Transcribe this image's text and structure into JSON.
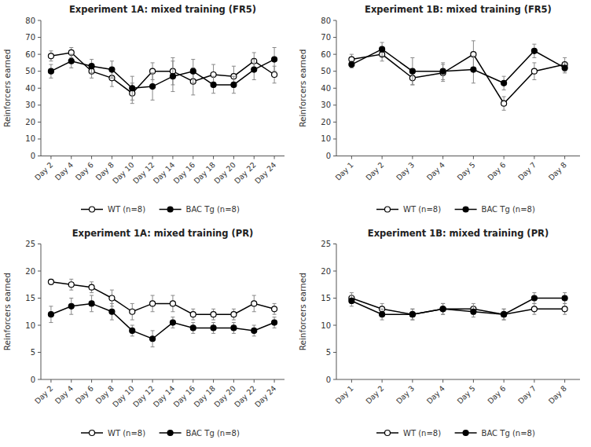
{
  "chart_data": [
    {
      "type": "line",
      "title": "Experiment 1A: mixed training (FR5)",
      "y_label": "Reinforcers earned",
      "categories": [
        "Day 2",
        "Day 4",
        "Day 6",
        "Day 8",
        "Day 10",
        "Day 12",
        "Day 14",
        "Day 16",
        "Day 18",
        "Day 20",
        "Day 22",
        "Day 24"
      ],
      "ylim": [
        0,
        80
      ],
      "yticks": [
        0,
        10,
        20,
        30,
        40,
        50,
        60,
        70,
        80
      ],
      "grid": false,
      "legend": "bottom",
      "series": [
        {
          "name": "WT (n=8)",
          "color": "#000000",
          "marker": "open-circle",
          "values": [
            59,
            61,
            50,
            46,
            37,
            50,
            50,
            44,
            48,
            47,
            56,
            48
          ],
          "errors": [
            3,
            3,
            4,
            5,
            6,
            5,
            8,
            8,
            6,
            6,
            5,
            5
          ]
        },
        {
          "name": "BAC Tg (n=8)",
          "color": "#000000",
          "marker": "circle",
          "values": [
            50,
            56,
            53,
            51,
            40,
            41,
            47,
            50,
            42,
            42,
            51,
            57
          ],
          "errors": [
            4,
            4,
            4,
            5,
            7,
            8,
            9,
            7,
            5,
            5,
            6,
            7
          ]
        }
      ]
    },
    {
      "type": "line",
      "title": "Experiment 1B: mixed training (FR5)",
      "y_label": "Reinforcers earned",
      "categories": [
        "Day 1",
        "Day 2",
        "Day 3",
        "Day 4",
        "Day 5",
        "Day 6",
        "Day 7",
        "Day 8"
      ],
      "ylim": [
        0,
        80
      ],
      "yticks": [
        0,
        10,
        20,
        30,
        40,
        50,
        60,
        70,
        80
      ],
      "grid": false,
      "legend": "bottom",
      "series": [
        {
          "name": "WT (n=8)",
          "color": "#000000",
          "marker": "open-circle",
          "values": [
            57,
            60,
            46,
            49,
            60,
            31,
            50,
            54
          ],
          "errors": [
            3,
            4,
            4,
            5,
            8,
            4,
            5,
            4
          ]
        },
        {
          "name": "BAC Tg (n=8)",
          "color": "#000000",
          "marker": "circle",
          "values": [
            54,
            63,
            50,
            50,
            51,
            43,
            62,
            52
          ],
          "errors": [
            2,
            4,
            8,
            5,
            8,
            4,
            4,
            3
          ]
        }
      ]
    },
    {
      "type": "line",
      "title": "Experiment 1A: mixed training (PR)",
      "y_label": "Reinforcers earned",
      "categories": [
        "Day 2",
        "Day 4",
        "Day 6",
        "Day 8",
        "Day 10",
        "Day 12",
        "Day 14",
        "Day 16",
        "Day 18",
        "Day 20",
        "Day 22",
        "Day 24"
      ],
      "ylim": [
        0,
        25
      ],
      "yticks": [
        0,
        5,
        10,
        15,
        20,
        25
      ],
      "grid": false,
      "legend": "bottom",
      "series": [
        {
          "name": "WT (n=8)",
          "color": "#000000",
          "marker": "open-circle",
          "values": [
            18,
            17.5,
            17,
            15,
            12.5,
            14,
            14,
            12,
            12,
            12,
            14,
            13
          ],
          "errors": [
            0.5,
            1,
            1,
            1.5,
            1.5,
            1.5,
            1.5,
            1,
            1,
            1,
            1.5,
            1
          ]
        },
        {
          "name": "BAC Tg (n=8)",
          "color": "#000000",
          "marker": "circle",
          "values": [
            12,
            13.5,
            14,
            12.5,
            9,
            7.5,
            10.5,
            9.5,
            9.5,
            9.5,
            9,
            10.5
          ],
          "errors": [
            1.5,
            1.5,
            1.5,
            1.5,
            1,
            1.5,
            1,
            1,
            1,
            1,
            1,
            1
          ]
        }
      ]
    },
    {
      "type": "line",
      "title": "Experiment 1B: mixed training (PR)",
      "y_label": "Reinforcers earned",
      "categories": [
        "Day 1",
        "Day 2",
        "Day 3",
        "Day 4",
        "Day 5",
        "Day 6",
        "Day 7",
        "Day 8"
      ],
      "ylim": [
        0,
        25
      ],
      "yticks": [
        0,
        5,
        10,
        15,
        20,
        25
      ],
      "grid": false,
      "legend": "bottom",
      "series": [
        {
          "name": "WT (n=8)",
          "color": "#000000",
          "marker": "open-circle",
          "values": [
            15,
            13,
            12,
            13,
            13,
            12,
            13,
            13
          ],
          "errors": [
            1,
            1,
            1,
            1,
            1,
            1,
            1,
            1
          ]
        },
        {
          "name": "BAC Tg (n=8)",
          "color": "#000000",
          "marker": "circle",
          "values": [
            14.5,
            12,
            12,
            13,
            12.5,
            12,
            15,
            15
          ],
          "errors": [
            1,
            1,
            1,
            1,
            1,
            1,
            1,
            1
          ]
        }
      ]
    }
  ]
}
